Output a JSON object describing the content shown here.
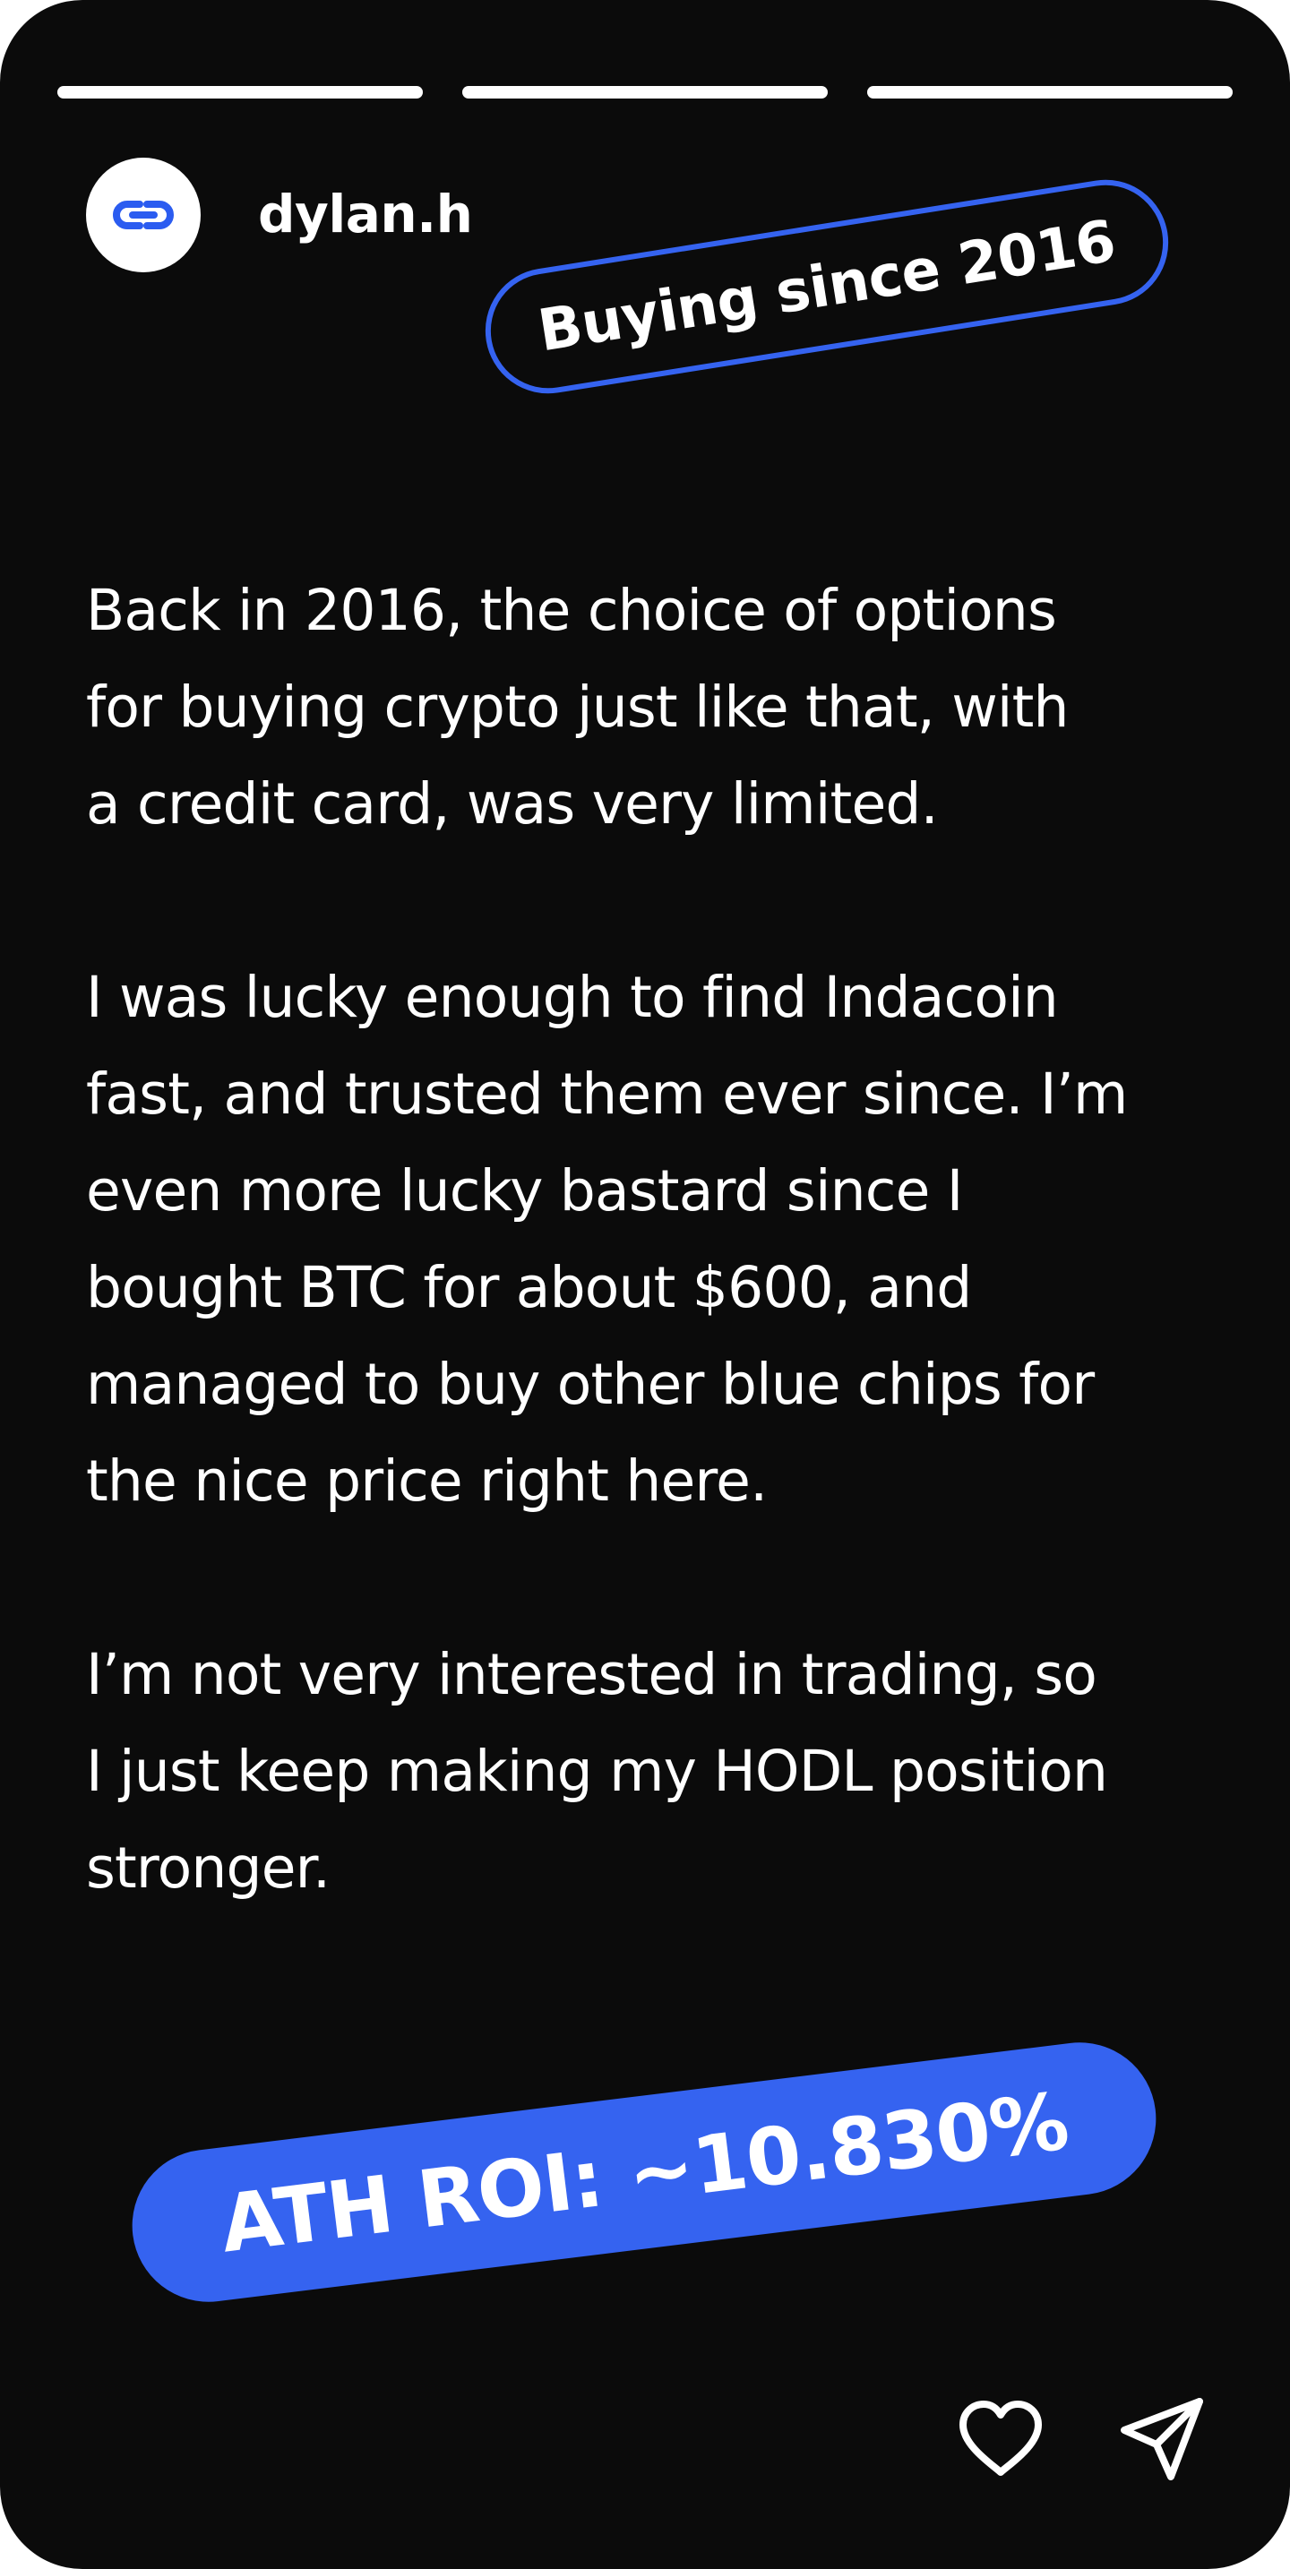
{
  "story": {
    "progress_segments": 3,
    "user": {
      "username": "dylan.h",
      "avatar_icon": "link-icon"
    },
    "badge": "Buying since 2016",
    "paragraphs": [
      "Back in 2016, the choice of options\nfor buying crypto just like that, with\na credit card, was very limited.",
      "I was lucky enough to find Indacoin\nfast, and trusted them ever since. I’m\neven more lucky bastard since I\nbought BTC for about $600, and\nmanaged to buy other blue chips for\nthe nice price right here.",
      "I’m not very interested in trading, so\nI just keep making my HODL position\nstronger."
    ],
    "roi": "ATH ROI: ~10.830%",
    "actions": {
      "like_icon": "heart-icon",
      "share_icon": "send-icon"
    }
  },
  "colors": {
    "background": "#0b0b0b",
    "accent": "#3563f0",
    "text": "#ffffff"
  }
}
